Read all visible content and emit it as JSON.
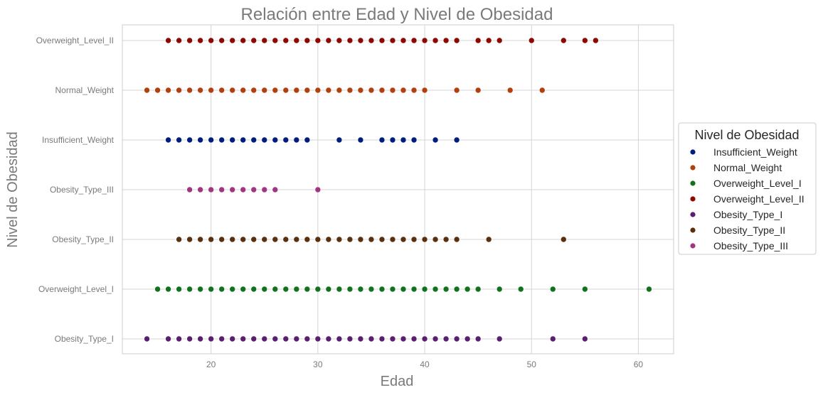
{
  "chart_data": {
    "type": "scatter",
    "title": "Relación entre Edad y Nivel de Obesidad",
    "xlabel": "Edad",
    "ylabel": "Nivel de Obesidad",
    "xlim": [
      11.7,
      63.3
    ],
    "xticks": [
      20,
      30,
      40,
      50,
      60
    ],
    "categories": [
      "Overweight_Level_II",
      "Normal_Weight",
      "Insufficient_Weight",
      "Obesity_Type_III",
      "Obesity_Type_II",
      "Overweight_Level_I",
      "Obesity_Type_I"
    ],
    "grid": true,
    "legend": {
      "title": "Nivel de Obesidad",
      "position": "center-right outside"
    },
    "series": [
      {
        "name": "Insufficient_Weight",
        "color": "#001c7f",
        "category": "Insufficient_Weight",
        "x": [
          16,
          17,
          18,
          19,
          20,
          21,
          22,
          23,
          24,
          25,
          26,
          27,
          28,
          29,
          32,
          34,
          36,
          37,
          38,
          39,
          41,
          43
        ]
      },
      {
        "name": "Normal_Weight",
        "color": "#b1400d",
        "category": "Normal_Weight",
        "x": [
          14,
          15,
          16,
          17,
          18,
          19,
          20,
          21,
          22,
          23,
          24,
          25,
          26,
          27,
          28,
          29,
          30,
          31,
          32,
          33,
          34,
          35,
          36,
          37,
          38,
          39,
          40,
          43,
          45,
          48,
          51
        ]
      },
      {
        "name": "Overweight_Level_I",
        "color": "#12711c",
        "category": "Overweight_Level_I",
        "x": [
          15,
          16,
          17,
          18,
          19,
          20,
          21,
          22,
          23,
          24,
          25,
          26,
          27,
          28,
          29,
          30,
          31,
          32,
          33,
          34,
          35,
          36,
          37,
          38,
          39,
          40,
          41,
          42,
          43,
          44,
          45,
          47,
          49,
          52,
          55,
          61
        ]
      },
      {
        "name": "Overweight_Level_II",
        "color": "#8c0800",
        "category": "Overweight_Level_II",
        "x": [
          16,
          17,
          18,
          19,
          20,
          21,
          22,
          23,
          24,
          25,
          26,
          27,
          28,
          29,
          30,
          31,
          32,
          33,
          34,
          35,
          36,
          37,
          38,
          39,
          40,
          41,
          42,
          43,
          45,
          46,
          47,
          50,
          53,
          55,
          56
        ]
      },
      {
        "name": "Obesity_Type_I",
        "color": "#591e71",
        "category": "Obesity_Type_I",
        "x": [
          14,
          16,
          17,
          18,
          19,
          20,
          21,
          22,
          23,
          24,
          25,
          26,
          27,
          28,
          29,
          30,
          31,
          32,
          33,
          34,
          35,
          36,
          37,
          38,
          39,
          40,
          41,
          42,
          43,
          44,
          45,
          47,
          52,
          55
        ]
      },
      {
        "name": "Obesity_Type_II",
        "color": "#592f0d",
        "category": "Obesity_Type_II",
        "x": [
          17,
          18,
          19,
          20,
          21,
          22,
          23,
          24,
          25,
          26,
          27,
          28,
          29,
          30,
          31,
          32,
          33,
          34,
          35,
          36,
          37,
          38,
          39,
          40,
          41,
          42,
          43,
          46,
          53
        ]
      },
      {
        "name": "Obesity_Type_III",
        "color": "#a23582",
        "category": "Obesity_Type_III",
        "x": [
          18,
          19,
          20,
          21,
          22,
          23,
          24,
          25,
          26,
          30
        ]
      }
    ]
  }
}
